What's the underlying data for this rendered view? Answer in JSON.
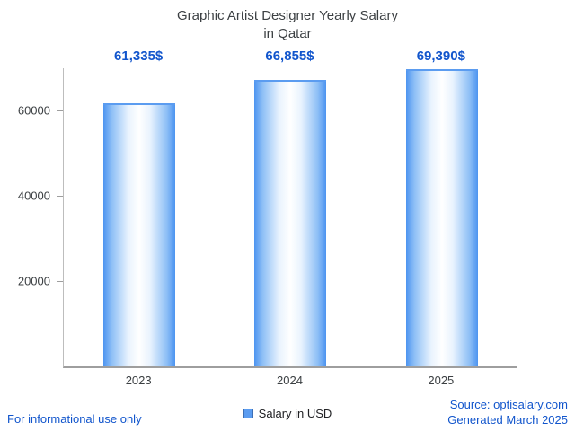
{
  "title": {
    "line1": "Graphic Artist Designer Yearly Salary",
    "line2": "in Qatar"
  },
  "chart_data": {
    "type": "bar",
    "title": "Graphic Artist Designer Yearly Salary in Qatar",
    "categories": [
      "2023",
      "2024",
      "2025"
    ],
    "values": [
      61335,
      66855,
      69390
    ],
    "value_labels": [
      "61,335$",
      "66,855$",
      "69,390$"
    ],
    "series_name": "Salary in USD",
    "xlabel": "",
    "ylabel": "",
    "ylim": [
      0,
      70000
    ],
    "yticks": [
      20000,
      40000,
      60000
    ],
    "ytick_labels": [
      "20000",
      "40000",
      "60000"
    ],
    "grid": false,
    "legend_position": "bottom"
  },
  "legend": {
    "label": "Salary in USD",
    "swatch_color": "#5b9cf0"
  },
  "footer": {
    "disclaimer": "For informational use only",
    "source": "Source: optisalary.com",
    "generated": "Generated March 2025"
  },
  "colors": {
    "value_label": "#1155cc",
    "bar_edge": "#4d94f0",
    "bar_center": "#ffffff",
    "axis": "#9e9e9e",
    "title_text": "#3c4043",
    "footer_link": "#1155cc"
  }
}
